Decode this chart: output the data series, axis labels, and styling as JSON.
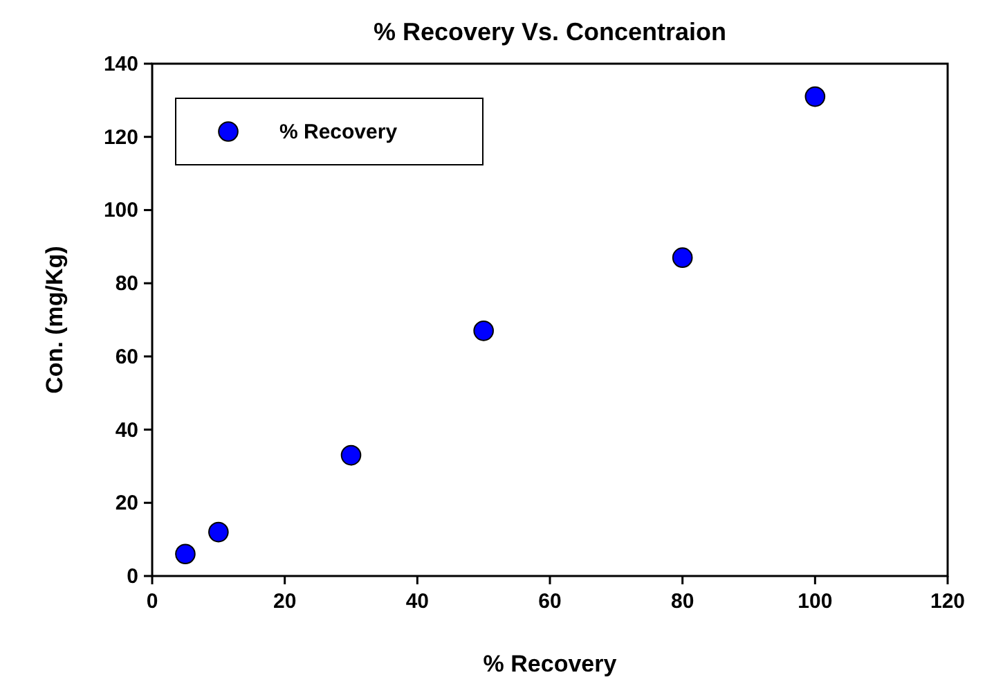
{
  "chart_data": {
    "type": "scatter",
    "title": "% Recovery Vs. Concentraion",
    "xlabel": "% Recovery",
    "ylabel": "Con. (mg/Kg)",
    "x": [
      5,
      10,
      30,
      50,
      80,
      100
    ],
    "series": [
      {
        "name": "% Recovery",
        "color": "#0000ff",
        "values": [
          6,
          12,
          33,
          67,
          87,
          131
        ]
      }
    ],
    "xlim": [
      0,
      120
    ],
    "xticks": [
      0,
      20,
      40,
      60,
      80,
      100,
      120
    ],
    "ylim": [
      0,
      140
    ],
    "yticks": [
      0,
      20,
      40,
      60,
      80,
      100,
      120,
      140
    ],
    "marker": "circle",
    "legend": "top left",
    "grid": false
  }
}
